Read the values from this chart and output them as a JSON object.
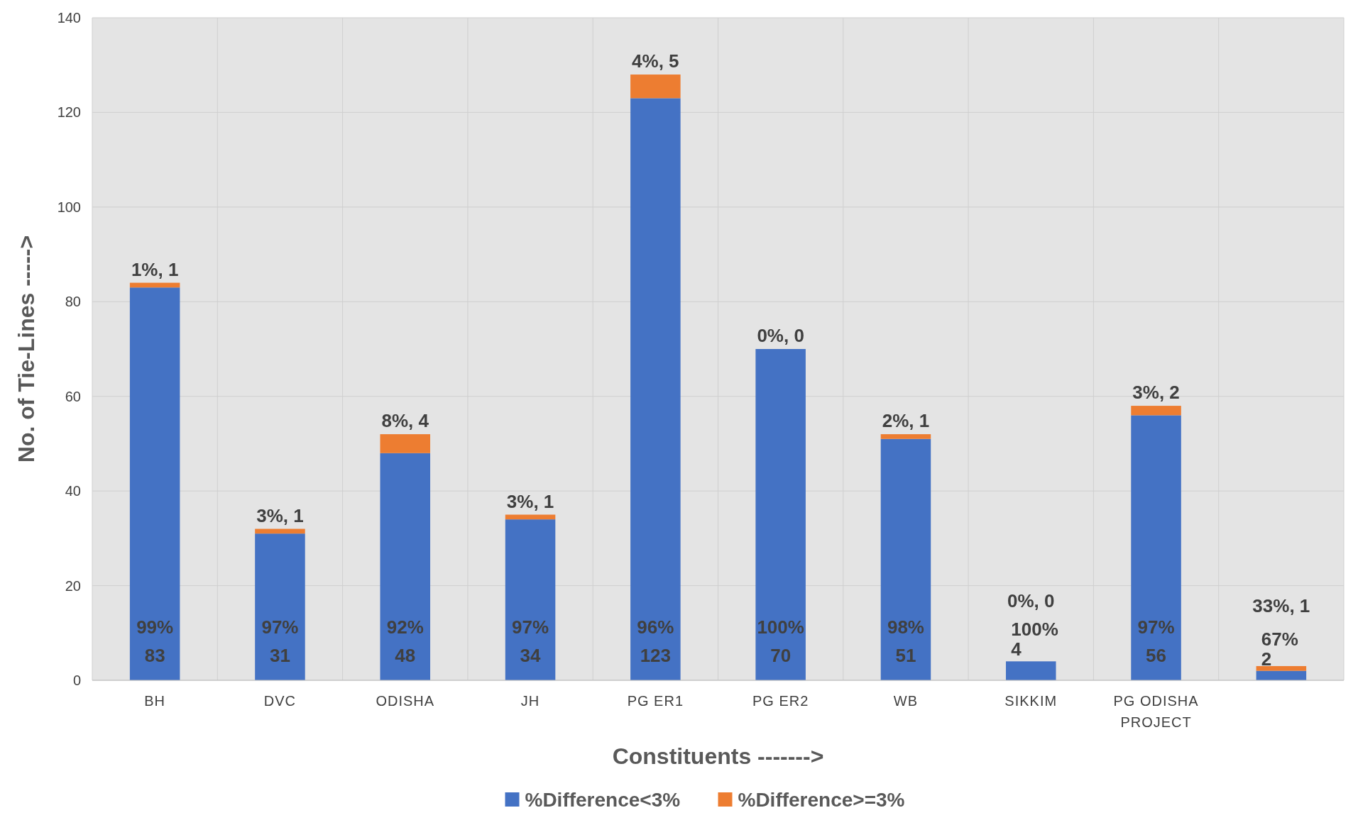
{
  "chart_data": {
    "type": "bar",
    "stacked": true,
    "xlabel": "Constituents ------->",
    "ylabel": "No. of Tie-Lines ----->",
    "categories": [
      "BH",
      "DVC",
      "ODISHA",
      "JH",
      "PG ER1",
      "PG ER2",
      "WB",
      "SIKKIM",
      "PG ODISHA PROJECT",
      null
    ],
    "series": [
      {
        "name": "%Difference<3%",
        "color": "#4472c4",
        "values": [
          83,
          31,
          48,
          34,
          123,
          70,
          51,
          4,
          56,
          2
        ],
        "value_labels": [
          "99%\n83",
          "97%\n31",
          "92%\n48",
          "97%\n34",
          "96%\n123",
          "100%\n70",
          "98%\n51",
          "100%\n4",
          "97%\n56",
          "67%\n2"
        ]
      },
      {
        "name": "%Difference>=3%",
        "color": "#ed7d31",
        "values": [
          1,
          1,
          4,
          1,
          5,
          0,
          1,
          0,
          2,
          1
        ],
        "value_labels": [
          "1%, 1",
          "3%, 1",
          "8%, 4",
          "3%, 1",
          "4%, 5",
          "0%, 0",
          "2%, 1",
          "0%, 0",
          "3%, 2",
          "33%, 1"
        ]
      }
    ],
    "ylim": [
      0,
      140
    ],
    "yticks": [
      0,
      20,
      40,
      60,
      80,
      100,
      120,
      140
    ],
    "grid": true,
    "legend": "bottom"
  }
}
